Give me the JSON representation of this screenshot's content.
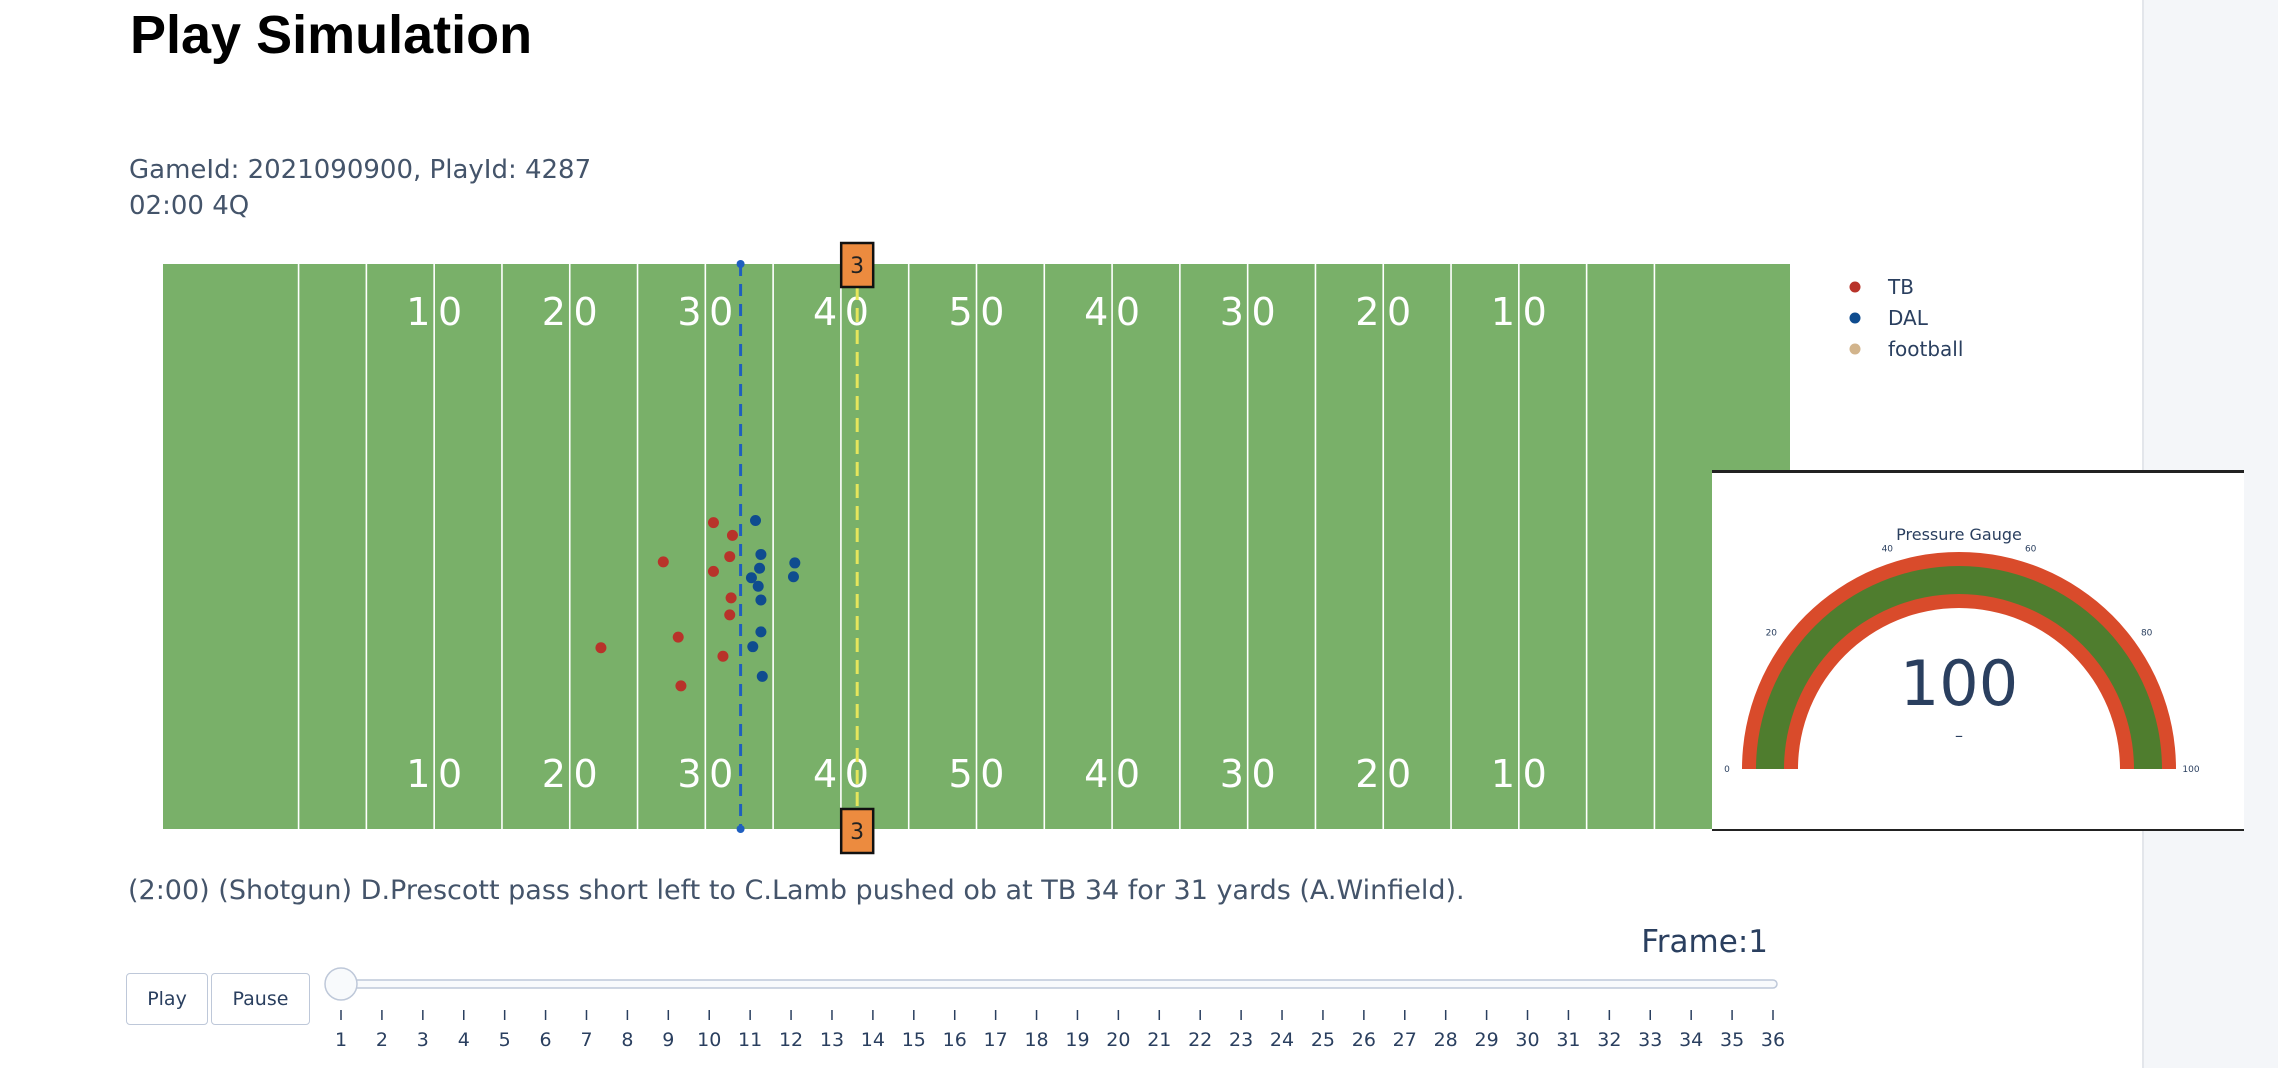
{
  "page": {
    "title": "Play Simulation"
  },
  "play": {
    "ids": "GameId: 2021090900, PlayId: 4287",
    "clock": "02:00 4Q",
    "description": "(2:00) (Shotgun) D.Prescott pass short left to C.Lamb pushed ob at TB 34 for 31 yards (A.Winfield)."
  },
  "field": {
    "colors": {
      "turf": "#79b069",
      "line": "#ffffff",
      "scrimmage": "#1f5fbf",
      "first_down": "#e6e65c",
      "marker": "#ec8b3f"
    },
    "yard_numbers": [
      "10",
      "20",
      "30",
      "40",
      "50",
      "40",
      "30",
      "20",
      "10"
    ],
    "down_marker": "3"
  },
  "legend": {
    "items": [
      {
        "label": "TB",
        "color": "#b8332a"
      },
      {
        "label": "DAL",
        "color": "#0f4c8f"
      },
      {
        "label": "football",
        "color": "#d2b48c"
      }
    ]
  },
  "players": {
    "TB": [
      {
        "x": 40.6,
        "y": 28.9
      },
      {
        "x": 42.0,
        "y": 27.7
      },
      {
        "x": 36.9,
        "y": 25.2
      },
      {
        "x": 41.8,
        "y": 25.7
      },
      {
        "x": 40.6,
        "y": 24.3
      },
      {
        "x": 41.9,
        "y": 21.8
      },
      {
        "x": 41.8,
        "y": 20.2
      },
      {
        "x": 38.0,
        "y": 18.1
      },
      {
        "x": 41.3,
        "y": 16.3
      },
      {
        "x": 32.3,
        "y": 17.1
      },
      {
        "x": 38.2,
        "y": 13.5
      }
    ],
    "DAL": [
      {
        "x": 43.7,
        "y": 29.1
      },
      {
        "x": 44.1,
        "y": 25.9
      },
      {
        "x": 44.0,
        "y": 24.6
      },
      {
        "x": 46.6,
        "y": 25.1
      },
      {
        "x": 43.4,
        "y": 23.7
      },
      {
        "x": 46.5,
        "y": 23.8
      },
      {
        "x": 43.9,
        "y": 22.9
      },
      {
        "x": 44.1,
        "y": 21.6
      },
      {
        "x": 44.1,
        "y": 18.6
      },
      {
        "x": 43.5,
        "y": 17.2
      },
      {
        "x": 44.2,
        "y": 14.4
      }
    ],
    "football": []
  },
  "line_of_scrimmage_x": 42.6,
  "first_down_x": 51.2,
  "gauge": {
    "title": "Pressure Gauge",
    "value": "100",
    "sublabel": "–",
    "ticks": [
      "0",
      "20",
      "40",
      "60",
      "80",
      "100"
    ],
    "colors": {
      "band": "#d94b2b",
      "bar": "#4f7d2e"
    }
  },
  "controls": {
    "frame_label": "Frame:1",
    "play_label": "Play",
    "pause_label": "Pause",
    "current_frame": 1,
    "frames": [
      "1",
      "2",
      "3",
      "4",
      "5",
      "6",
      "7",
      "8",
      "9",
      "10",
      "11",
      "12",
      "13",
      "14",
      "15",
      "16",
      "17",
      "18",
      "19",
      "20",
      "21",
      "22",
      "23",
      "24",
      "25",
      "26",
      "27",
      "28",
      "29",
      "30",
      "31",
      "32",
      "33",
      "34",
      "35",
      "36"
    ]
  }
}
